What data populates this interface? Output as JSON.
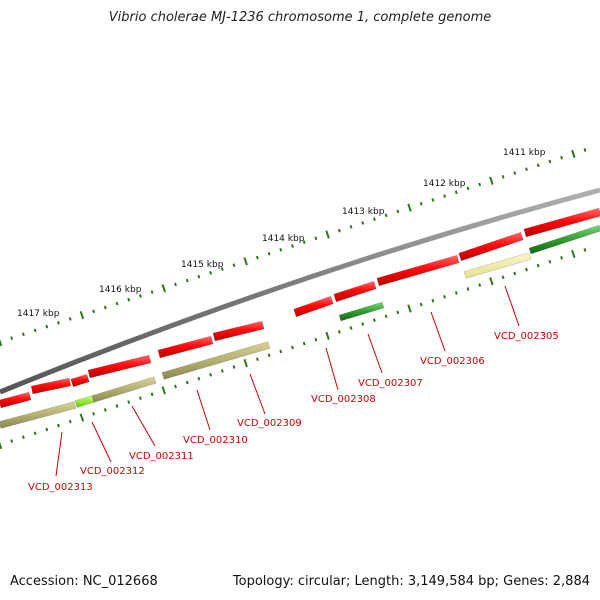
{
  "title": "Vibrio cholerae MJ-1236 chromosome 1, complete genome",
  "footer": {
    "accession": "Accession: NC_012668",
    "info": "Topology: circular; Length: 3,149,584 bp; Genes: 2,884"
  },
  "colors": {
    "backbone": "#7a7a7a",
    "forward_gene": "#e8000b",
    "reverse_gene_olive": "#b5b070",
    "reverse_gene_pale": "#eee8a0",
    "reverse_gene_green": "#2f9e2f",
    "reverse_gene_lime": "#88ee22",
    "tick": "#2a7a1a",
    "label": "#d40000"
  },
  "scale_labels": [
    "1411 kbp",
    "1412 kbp",
    "1413 kbp",
    "1414 kbp",
    "1415 kbp",
    "1416 kbp",
    "1417 kbp"
  ],
  "gene_labels": [
    "VCD_002305",
    "VCD_002306",
    "VCD_002307",
    "VCD_002308",
    "VCD_002309",
    "VCD_002310",
    "VCD_002311",
    "VCD_002312",
    "VCD_002313"
  ]
}
